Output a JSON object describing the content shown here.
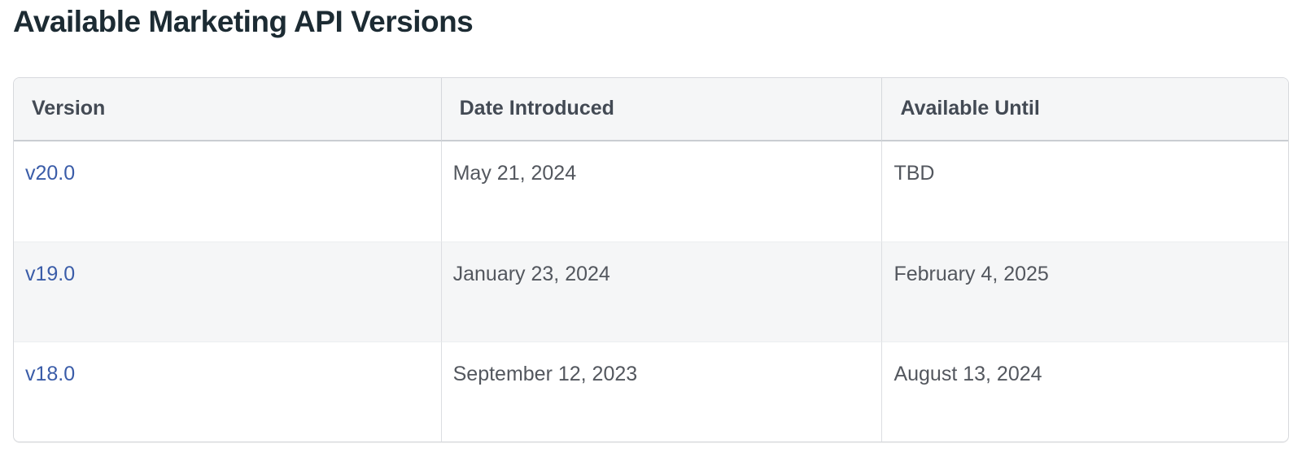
{
  "page": {
    "title": "Available Marketing API Versions"
  },
  "colors": {
    "title_text": "#1c2b33",
    "header_bg": "#f5f6f7",
    "header_text": "#434a54",
    "body_text": "#53575e",
    "link_blue": "#3a5ca8",
    "table_border": "#d7d9dd",
    "zebra_row_bg": "#f5f6f7"
  },
  "table": {
    "columns": [
      {
        "label": "Version"
      },
      {
        "label": "Date Introduced"
      },
      {
        "label": "Available Until"
      }
    ],
    "rows": [
      {
        "version": "v20.0",
        "date_introduced": "May 21, 2024",
        "available_until": "TBD"
      },
      {
        "version": "v19.0",
        "date_introduced": "January 23, 2024",
        "available_until": "February 4, 2025"
      },
      {
        "version": "v18.0",
        "date_introduced": "September 12, 2023",
        "available_until": "August 13, 2024"
      }
    ]
  }
}
